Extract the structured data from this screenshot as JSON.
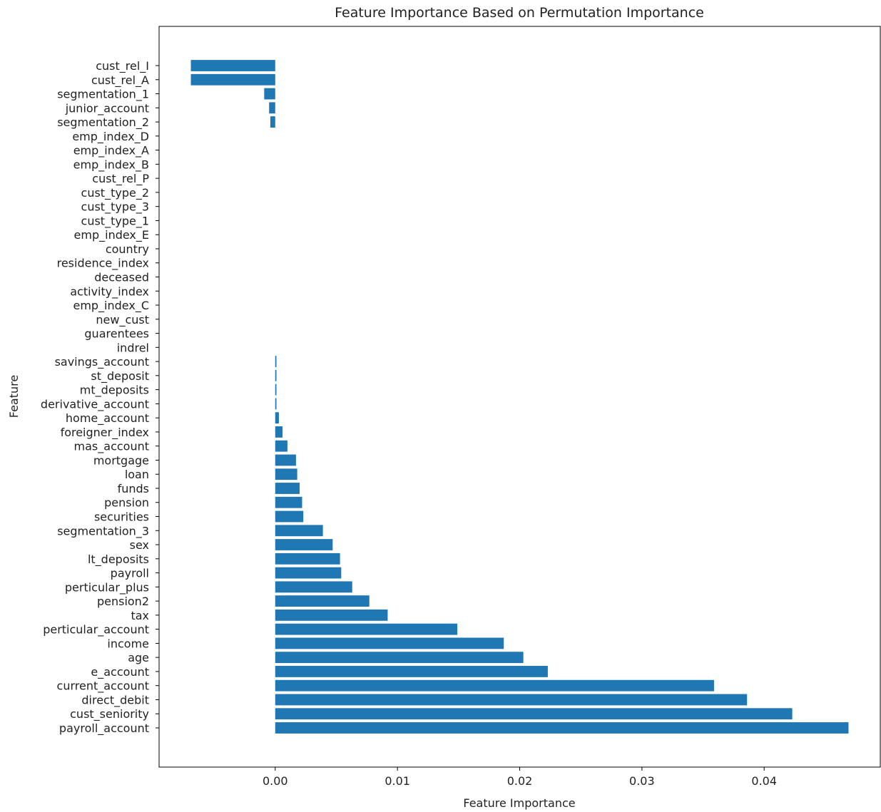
{
  "chart_data": {
    "type": "bar",
    "orientation": "horizontal",
    "title": "Feature Importance Based on Permutation Importance",
    "xlabel": "Feature Importance",
    "ylabel": "Feature",
    "xlim": [
      -0.0095,
      0.0495
    ],
    "xticks": [
      0.0,
      0.01,
      0.02,
      0.03,
      0.04
    ],
    "xtick_labels": [
      "0.00",
      "0.01",
      "0.02",
      "0.03",
      "0.04"
    ],
    "grid": false,
    "bar_color": "#1f77b4",
    "categories": [
      "cust_rel_I",
      "cust_rel_A",
      "segmentation_1",
      "junior_account",
      "segmentation_2",
      "emp_index_D",
      "emp_index_A",
      "emp_index_B",
      "cust_rel_P",
      "cust_type_2",
      "cust_type_3",
      "cust_type_1",
      "emp_index_E",
      "country",
      "residence_index",
      "deceased",
      "activity_index",
      "emp_index_C",
      "new_cust",
      "guarentees",
      "indrel",
      "savings_account",
      "st_deposit",
      "mt_deposits",
      "derivative_account",
      "home_account",
      "foreigner_index",
      "mas_account",
      "mortgage",
      "loan",
      "funds",
      "pension",
      "securities",
      "segmentation_3",
      "sex",
      "lt_deposits",
      "payroll",
      "perticular_plus",
      "pension2",
      "tax",
      "perticular_account",
      "income",
      "age",
      "e_account",
      "current_account",
      "direct_debit",
      "cust_seniority",
      "payroll_account"
    ],
    "values": [
      -0.0069,
      -0.0069,
      -0.0009,
      -0.0005,
      -0.0004,
      0,
      0,
      0,
      0,
      0,
      0,
      0,
      0,
      0,
      0,
      0,
      0,
      0,
      0,
      0,
      0,
      0.0001,
      0.0001,
      0.0001,
      0.0001,
      0.0003,
      0.0006,
      0.001,
      0.0017,
      0.0018,
      0.002,
      0.0022,
      0.0023,
      0.0039,
      0.0047,
      0.0053,
      0.0054,
      0.0063,
      0.0077,
      0.0092,
      0.0149,
      0.0187,
      0.0203,
      0.0223,
      0.0359,
      0.0386,
      0.0423,
      0.0469
    ]
  }
}
